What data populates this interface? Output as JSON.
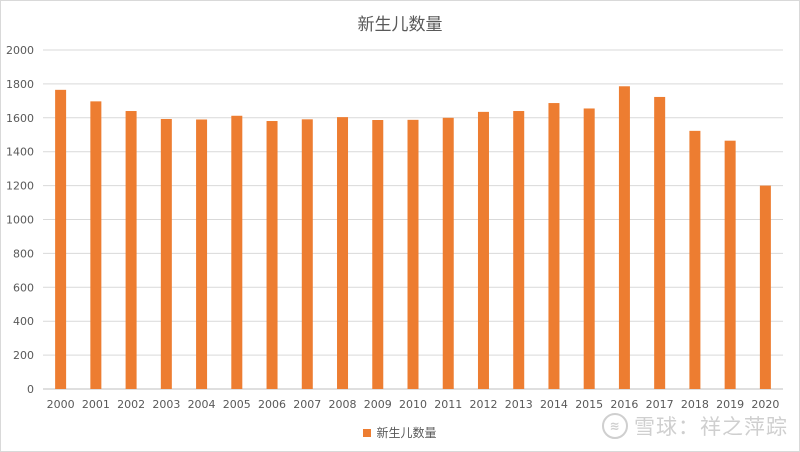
{
  "chart_data": {
    "type": "bar",
    "title": "新生儿数量",
    "xlabel": "",
    "ylabel": "",
    "categories": [
      "2000",
      "2001",
      "2002",
      "2003",
      "2004",
      "2005",
      "2006",
      "2007",
      "2008",
      "2009",
      "2010",
      "2011",
      "2012",
      "2013",
      "2014",
      "2015",
      "2016",
      "2017",
      "2018",
      "2019",
      "2020"
    ],
    "series": [
      {
        "name": "新生儿数量",
        "values": [
          1765,
          1697,
          1640,
          1593,
          1590,
          1612,
          1581,
          1591,
          1604,
          1587,
          1588,
          1600,
          1635,
          1640,
          1687,
          1655,
          1786,
          1723,
          1523,
          1465,
          1200
        ]
      }
    ],
    "ylim": [
      0,
      2000
    ],
    "yticks": [
      0,
      200,
      400,
      600,
      800,
      1000,
      1200,
      1400,
      1600,
      1800,
      2000
    ],
    "grid": true,
    "legend_position": "bottom",
    "bar_color": "#ED7D31"
  },
  "watermark": {
    "text": "雪球：祥之萍踪"
  }
}
